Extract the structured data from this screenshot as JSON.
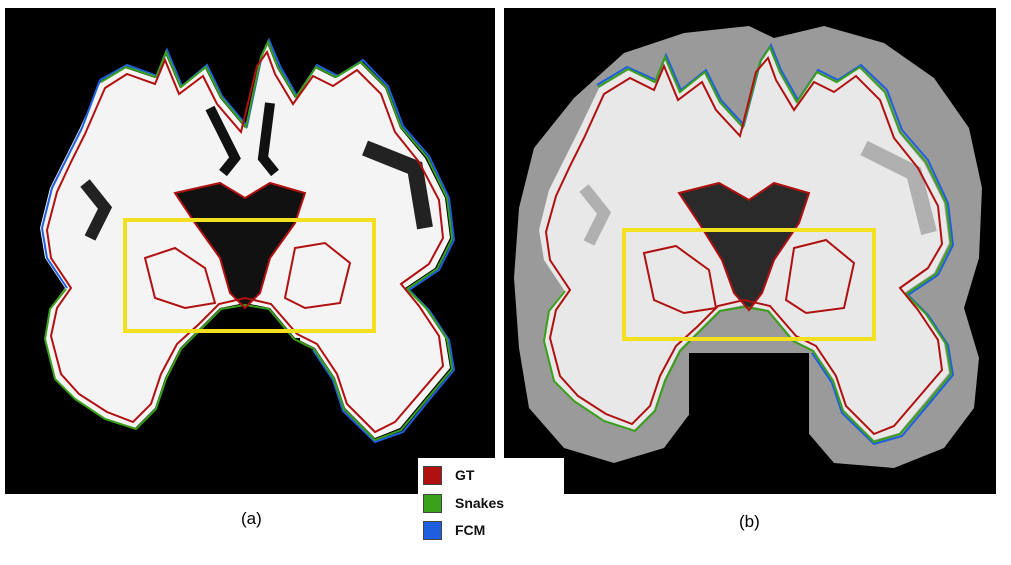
{
  "panels": [
    {
      "caption": "(a)"
    },
    {
      "caption": "(b)"
    }
  ],
  "legend": {
    "items": [
      {
        "label": "GT",
        "color": "#b01010"
      },
      {
        "label": "Snakes",
        "color": "#3aa01a"
      },
      {
        "label": "FCM",
        "color": "#1e5fe0"
      }
    ]
  },
  "highlight_box_color": "#f5e020"
}
